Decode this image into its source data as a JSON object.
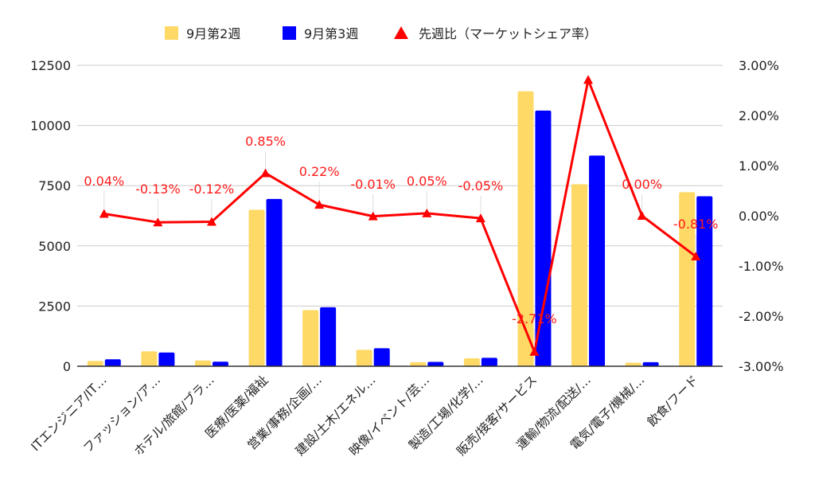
{
  "chart_data": {
    "type": "bar",
    "categories": [
      "ITエンジニア/IT…",
      "ファッション/ア…",
      "ホテル/旅館/ブラ…",
      "医療/医薬/福祉",
      "営業/事務/企画/…",
      "建設/土木/エネル…",
      "映像/イベント/芸…",
      "製造/工場/化学/…",
      "販売/接客/サービス",
      "運輸/物流/配送/…",
      "電気/電子/機械/…",
      "飲食/フード"
    ],
    "series": [
      {
        "name": "9月第2週",
        "type": "bar",
        "axis": "left",
        "color": "#FFD966",
        "values": [
          220,
          620,
          240,
          6500,
          2330,
          680,
          170,
          330,
          11420,
          7560,
          150,
          7230
        ]
      },
      {
        "name": "9月第3週",
        "type": "bar",
        "axis": "left",
        "color": "#0000FF",
        "values": [
          290,
          570,
          190,
          6950,
          2450,
          750,
          180,
          350,
          10620,
          8750,
          170,
          7060
        ]
      },
      {
        "name": "先週比（マーケットシェア率）",
        "type": "line",
        "axis": "right",
        "color": "#FF0000",
        "values": [
          0.04,
          -0.13,
          -0.12,
          0.85,
          0.22,
          -0.01,
          0.05,
          -0.05,
          -2.71,
          2.71,
          0.0,
          -0.81
        ],
        "labels": [
          "0.04%",
          "-0.13%",
          "-0.12%",
          "0.85%",
          "0.22%",
          "-0.01%",
          "0.05%",
          "-0.05%",
          "-2.71%",
          "",
          "0.00%",
          "-0.81%"
        ]
      }
    ],
    "y_left": {
      "min": 0,
      "max": 12500,
      "ticks": [
        "0",
        "2500",
        "5000",
        "7500",
        "10000",
        "12500"
      ]
    },
    "y_right": {
      "min": -3,
      "max": 3,
      "ticks": [
        "-3.00%",
        "-2.00%",
        "-1.00%",
        "0.00%",
        "1.00%",
        "2.00%",
        "3.00%"
      ]
    },
    "legend_position": "top",
    "grid": true
  }
}
